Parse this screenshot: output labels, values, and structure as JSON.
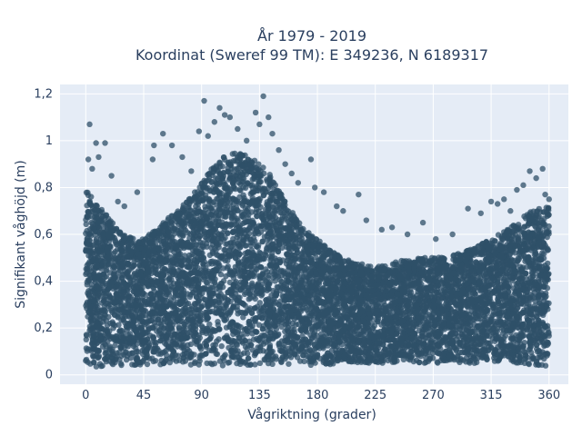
{
  "chart_data": {
    "type": "scatter",
    "title_line1": "År 1979 - 2019",
    "title_line2": "Koordinat (Sweref 99 TM): E 349236, N 6189317",
    "xlabel": "Vågriktning (grader)",
    "ylabel": "Signifikant våghöjd (m)",
    "xlim": [
      -20,
      375
    ],
    "ylim": [
      -0.04,
      1.24
    ],
    "xticks": [
      0,
      45,
      90,
      135,
      180,
      225,
      270,
      315,
      360
    ],
    "xtick_labels": [
      "0",
      "45",
      "90",
      "135",
      "180",
      "225",
      "270",
      "315",
      "360"
    ],
    "yticks": [
      0,
      0.2,
      0.4,
      0.6,
      0.8,
      1.0,
      1.2
    ],
    "ytick_labels": [
      "0",
      "0,2",
      "0,4",
      "0,6",
      "0,8",
      "1",
      "1,2"
    ],
    "grid": true,
    "background_color": "#e5ecf6",
    "marker_color": "#2f5068",
    "envelope": {
      "x": [
        0,
        10,
        20,
        30,
        45,
        60,
        75,
        90,
        100,
        110,
        120,
        130,
        140,
        150,
        160,
        170,
        180,
        190,
        200,
        210,
        225,
        240,
        255,
        270,
        285,
        300,
        315,
        330,
        345,
        360
      ],
      "upper": [
        0.8,
        0.72,
        0.66,
        0.6,
        0.58,
        0.65,
        0.72,
        0.82,
        0.9,
        0.94,
        0.95,
        0.92,
        0.88,
        0.8,
        0.7,
        0.62,
        0.58,
        0.53,
        0.5,
        0.48,
        0.46,
        0.48,
        0.5,
        0.5,
        0.51,
        0.54,
        0.58,
        0.63,
        0.7,
        0.72
      ],
      "lower": [
        0.03,
        0.03,
        0.04,
        0.04,
        0.04,
        0.04,
        0.04,
        0.04,
        0.04,
        0.04,
        0.04,
        0.04,
        0.04,
        0.04,
        0.04,
        0.04,
        0.04,
        0.04,
        0.05,
        0.05,
        0.05,
        0.05,
        0.05,
        0.05,
        0.05,
        0.05,
        0.05,
        0.05,
        0.04,
        0.03
      ]
    },
    "outliers": [
      {
        "x": 3,
        "y": 1.07
      },
      {
        "x": 8,
        "y": 0.99
      },
      {
        "x": 15,
        "y": 0.99
      },
      {
        "x": 10,
        "y": 0.93
      },
      {
        "x": 2,
        "y": 0.92
      },
      {
        "x": 5,
        "y": 0.88
      },
      {
        "x": 20,
        "y": 0.85
      },
      {
        "x": 40,
        "y": 0.78
      },
      {
        "x": 52,
        "y": 0.92
      },
      {
        "x": 53,
        "y": 0.98
      },
      {
        "x": 60,
        "y": 1.03
      },
      {
        "x": 67,
        "y": 0.98
      },
      {
        "x": 75,
        "y": 0.93
      },
      {
        "x": 82,
        "y": 0.87
      },
      {
        "x": 88,
        "y": 1.04
      },
      {
        "x": 92,
        "y": 1.17
      },
      {
        "x": 95,
        "y": 1.02
      },
      {
        "x": 100,
        "y": 1.08
      },
      {
        "x": 104,
        "y": 1.14
      },
      {
        "x": 108,
        "y": 1.11
      },
      {
        "x": 112,
        "y": 1.1
      },
      {
        "x": 118,
        "y": 1.05
      },
      {
        "x": 125,
        "y": 1.0
      },
      {
        "x": 132,
        "y": 1.12
      },
      {
        "x": 135,
        "y": 1.07
      },
      {
        "x": 138,
        "y": 1.19
      },
      {
        "x": 142,
        "y": 1.1
      },
      {
        "x": 145,
        "y": 1.03
      },
      {
        "x": 150,
        "y": 0.96
      },
      {
        "x": 155,
        "y": 0.9
      },
      {
        "x": 160,
        "y": 0.86
      },
      {
        "x": 165,
        "y": 0.82
      },
      {
        "x": 175,
        "y": 0.92
      },
      {
        "x": 178,
        "y": 0.8
      },
      {
        "x": 185,
        "y": 0.78
      },
      {
        "x": 195,
        "y": 0.72
      },
      {
        "x": 200,
        "y": 0.7
      },
      {
        "x": 212,
        "y": 0.77
      },
      {
        "x": 218,
        "y": 0.66
      },
      {
        "x": 230,
        "y": 0.62
      },
      {
        "x": 238,
        "y": 0.63
      },
      {
        "x": 250,
        "y": 0.6
      },
      {
        "x": 262,
        "y": 0.65
      },
      {
        "x": 272,
        "y": 0.58
      },
      {
        "x": 285,
        "y": 0.6
      },
      {
        "x": 297,
        "y": 0.71
      },
      {
        "x": 307,
        "y": 0.69
      },
      {
        "x": 315,
        "y": 0.74
      },
      {
        "x": 320,
        "y": 0.73
      },
      {
        "x": 325,
        "y": 0.75
      },
      {
        "x": 330,
        "y": 0.7
      },
      {
        "x": 335,
        "y": 0.79
      },
      {
        "x": 340,
        "y": 0.81
      },
      {
        "x": 345,
        "y": 0.87
      },
      {
        "x": 350,
        "y": 0.84
      },
      {
        "x": 355,
        "y": 0.88
      },
      {
        "x": 357,
        "y": 0.77
      },
      {
        "x": 360,
        "y": 0.75
      },
      {
        "x": 30,
        "y": 0.72
      },
      {
        "x": 25,
        "y": 0.74
      }
    ]
  }
}
